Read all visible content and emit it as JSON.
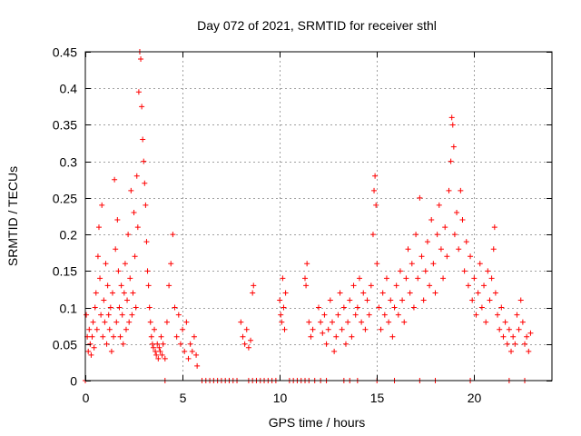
{
  "chart_data": {
    "type": "scatter",
    "title": "Day 072 of 2021, SRMTID for receiver sthl",
    "xlabel": "GPS time / hours",
    "ylabel": "SRMTID / TECUs",
    "xlim": [
      0,
      24
    ],
    "ylim": [
      0,
      0.45
    ],
    "xticks": [
      0,
      5,
      10,
      15,
      20
    ],
    "yticks": [
      0,
      0.05,
      0.1,
      0.15,
      0.2,
      0.25,
      0.3,
      0.35,
      0.4,
      0.45
    ],
    "xtick_labels": [
      "0",
      "5",
      "10",
      "15",
      "20"
    ],
    "ytick_labels": [
      "0",
      "0.05",
      "0.1",
      "0.15",
      "0.2",
      "0.25",
      "0.3",
      "0.35",
      "0.4",
      "0.45"
    ],
    "grid": true,
    "marker": "+",
    "color": "#ff0000",
    "series": [
      {
        "name": "SRMTID",
        "points": [
          [
            0.05,
            0.09
          ],
          [
            0.1,
            0.06
          ],
          [
            0.15,
            0.04
          ],
          [
            0.2,
            0.07
          ],
          [
            0.25,
            0.05
          ],
          [
            0.3,
            0.035
          ],
          [
            0.35,
            0.06
          ],
          [
            0.4,
            0.08
          ],
          [
            0.45,
            0.045
          ],
          [
            0.5,
            0.1
          ],
          [
            0.55,
            0.12
          ],
          [
            0.6,
            0.07
          ],
          [
            0.65,
            0.17
          ],
          [
            0.7,
            0.21
          ],
          [
            0.75,
            0.14
          ],
          [
            0.8,
            0.09
          ],
          [
            0.85,
            0.24
          ],
          [
            0.9,
            0.06
          ],
          [
            0.95,
            0.11
          ],
          [
            1.0,
            0.08
          ],
          [
            1.05,
            0.16
          ],
          [
            1.1,
            0.05
          ],
          [
            1.15,
            0.13
          ],
          [
            1.2,
            0.09
          ],
          [
            1.25,
            0.07
          ],
          [
            1.3,
            0.1
          ],
          [
            1.35,
            0.04
          ],
          [
            1.4,
            0.12
          ],
          [
            1.45,
            0.06
          ],
          [
            1.5,
            0.275
          ],
          [
            1.55,
            0.18
          ],
          [
            1.6,
            0.08
          ],
          [
            1.65,
            0.22
          ],
          [
            1.7,
            0.15
          ],
          [
            1.75,
            0.1
          ],
          [
            1.8,
            0.06
          ],
          [
            1.85,
            0.13
          ],
          [
            1.9,
            0.09
          ],
          [
            1.95,
            0.05
          ],
          [
            2.0,
            0.12
          ],
          [
            2.05,
            0.16
          ],
          [
            2.1,
            0.07
          ],
          [
            2.15,
            0.11
          ],
          [
            2.2,
            0.2
          ],
          [
            2.25,
            0.08
          ],
          [
            2.3,
            0.14
          ],
          [
            2.35,
            0.26
          ],
          [
            2.4,
            0.09
          ],
          [
            2.45,
            0.12
          ],
          [
            2.5,
            0.23
          ],
          [
            2.55,
            0.17
          ],
          [
            2.6,
            0.1
          ],
          [
            2.65,
            0.28
          ],
          [
            2.7,
            0.21
          ],
          [
            2.75,
            0.395
          ],
          [
            2.8,
            0.45
          ],
          [
            2.85,
            0.44
          ],
          [
            2.9,
            0.375
          ],
          [
            2.95,
            0.33
          ],
          [
            3.0,
            0.3
          ],
          [
            3.05,
            0.27
          ],
          [
            3.1,
            0.24
          ],
          [
            3.15,
            0.19
          ],
          [
            3.2,
            0.15
          ],
          [
            3.25,
            0.13
          ],
          [
            3.3,
            0.1
          ],
          [
            3.35,
            0.08
          ],
          [
            3.4,
            0.06
          ],
          [
            3.45,
            0.05
          ],
          [
            3.5,
            0.045
          ],
          [
            3.55,
            0.07
          ],
          [
            3.6,
            0.04
          ],
          [
            3.65,
            0.035
          ],
          [
            3.7,
            0.05
          ],
          [
            3.75,
            0.03
          ],
          [
            3.8,
            0.045
          ],
          [
            3.85,
            0.04
          ],
          [
            3.9,
            0.06
          ],
          [
            3.95,
            0.035
          ],
          [
            4.0,
            0.05
          ],
          [
            4.1,
            0.03
          ],
          [
            4.2,
            0.08
          ],
          [
            4.3,
            0.13
          ],
          [
            4.4,
            0.16
          ],
          [
            4.5,
            0.2
          ],
          [
            4.6,
            0.1
          ],
          [
            4.7,
            0.06
          ],
          [
            4.8,
            0.09
          ],
          [
            4.9,
            0.05
          ],
          [
            5.0,
            0.07
          ],
          [
            5.1,
            0.04
          ],
          [
            5.2,
            0.08
          ],
          [
            5.3,
            0.03
          ],
          [
            5.4,
            0.05
          ],
          [
            5.5,
            0.04
          ],
          [
            5.6,
            0.06
          ],
          [
            5.7,
            0.035
          ],
          [
            5.75,
            0.02
          ],
          [
            8.0,
            0.08
          ],
          [
            8.1,
            0.06
          ],
          [
            8.2,
            0.05
          ],
          [
            8.3,
            0.07
          ],
          [
            8.4,
            0.045
          ],
          [
            8.5,
            0.055
          ],
          [
            8.6,
            0.12
          ],
          [
            8.65,
            0.13
          ],
          [
            10.0,
            0.11
          ],
          [
            10.05,
            0.09
          ],
          [
            10.1,
            0.08
          ],
          [
            10.15,
            0.14
          ],
          [
            10.2,
            0.1
          ],
          [
            10.25,
            0.07
          ],
          [
            10.3,
            0.12
          ],
          [
            11.3,
            0.14
          ],
          [
            11.35,
            0.13
          ],
          [
            11.4,
            0.16
          ],
          [
            11.5,
            0.08
          ],
          [
            11.6,
            0.06
          ],
          [
            11.7,
            0.07
          ],
          [
            12.0,
            0.1
          ],
          [
            12.1,
            0.08
          ],
          [
            12.2,
            0.065
          ],
          [
            12.3,
            0.09
          ],
          [
            12.4,
            0.05
          ],
          [
            12.5,
            0.07
          ],
          [
            12.6,
            0.11
          ],
          [
            12.7,
            0.08
          ],
          [
            12.8,
            0.04
          ],
          [
            12.9,
            0.06
          ],
          [
            13.0,
            0.09
          ],
          [
            13.1,
            0.12
          ],
          [
            13.2,
            0.07
          ],
          [
            13.3,
            0.1
          ],
          [
            13.4,
            0.05
          ],
          [
            13.5,
            0.08
          ],
          [
            13.6,
            0.11
          ],
          [
            13.7,
            0.06
          ],
          [
            13.8,
            0.13
          ],
          [
            13.9,
            0.09
          ],
          [
            14.0,
            0.1
          ],
          [
            14.1,
            0.14
          ],
          [
            14.2,
            0.08
          ],
          [
            14.3,
            0.12
          ],
          [
            14.4,
            0.07
          ],
          [
            14.5,
            0.11
          ],
          [
            14.6,
            0.09
          ],
          [
            14.7,
            0.13
          ],
          [
            14.8,
            0.2
          ],
          [
            14.85,
            0.26
          ],
          [
            14.9,
            0.28
          ],
          [
            14.95,
            0.24
          ],
          [
            15.0,
            0.16
          ],
          [
            15.1,
            0.1
          ],
          [
            15.2,
            0.07
          ],
          [
            15.3,
            0.12
          ],
          [
            15.4,
            0.09
          ],
          [
            15.5,
            0.14
          ],
          [
            15.6,
            0.08
          ],
          [
            15.7,
            0.11
          ],
          [
            15.8,
            0.06
          ],
          [
            15.9,
            0.1
          ],
          [
            16.0,
            0.13
          ],
          [
            16.1,
            0.09
          ],
          [
            16.2,
            0.15
          ],
          [
            16.3,
            0.11
          ],
          [
            16.4,
            0.08
          ],
          [
            16.5,
            0.14
          ],
          [
            16.6,
            0.18
          ],
          [
            16.7,
            0.12
          ],
          [
            16.8,
            0.16
          ],
          [
            16.9,
            0.1
          ],
          [
            17.0,
            0.2
          ],
          [
            17.1,
            0.14
          ],
          [
            17.2,
            0.25
          ],
          [
            17.3,
            0.17
          ],
          [
            17.4,
            0.11
          ],
          [
            17.5,
            0.15
          ],
          [
            17.6,
            0.19
          ],
          [
            17.7,
            0.13
          ],
          [
            17.8,
            0.22
          ],
          [
            17.9,
            0.16
          ],
          [
            18.0,
            0.12
          ],
          [
            18.1,
            0.2
          ],
          [
            18.2,
            0.24
          ],
          [
            18.3,
            0.18
          ],
          [
            18.4,
            0.14
          ],
          [
            18.5,
            0.21
          ],
          [
            18.6,
            0.17
          ],
          [
            18.7,
            0.26
          ],
          [
            18.8,
            0.3
          ],
          [
            18.85,
            0.36
          ],
          [
            18.9,
            0.35
          ],
          [
            18.95,
            0.32
          ],
          [
            19.0,
            0.2
          ],
          [
            19.1,
            0.23
          ],
          [
            19.2,
            0.18
          ],
          [
            19.3,
            0.26
          ],
          [
            19.4,
            0.22
          ],
          [
            19.5,
            0.15
          ],
          [
            19.6,
            0.19
          ],
          [
            19.7,
            0.13
          ],
          [
            19.8,
            0.17
          ],
          [
            19.9,
            0.11
          ],
          [
            20.0,
            0.14
          ],
          [
            20.1,
            0.09
          ],
          [
            20.2,
            0.12
          ],
          [
            20.3,
            0.16
          ],
          [
            20.4,
            0.1
          ],
          [
            20.5,
            0.13
          ],
          [
            20.6,
            0.08
          ],
          [
            20.7,
            0.15
          ],
          [
            20.8,
            0.11
          ],
          [
            20.9,
            0.14
          ],
          [
            21.0,
            0.18
          ],
          [
            21.05,
            0.21
          ],
          [
            21.1,
            0.12
          ],
          [
            21.2,
            0.09
          ],
          [
            21.3,
            0.07
          ],
          [
            21.4,
            0.1
          ],
          [
            21.5,
            0.06
          ],
          [
            21.6,
            0.08
          ],
          [
            21.7,
            0.05
          ],
          [
            21.8,
            0.07
          ],
          [
            21.9,
            0.04
          ],
          [
            22.0,
            0.06
          ],
          [
            22.1,
            0.05
          ],
          [
            22.2,
            0.09
          ],
          [
            22.3,
            0.07
          ],
          [
            22.4,
            0.11
          ],
          [
            22.5,
            0.08
          ],
          [
            22.6,
            0.05
          ],
          [
            22.7,
            0.06
          ],
          [
            22.8,
            0.04
          ],
          [
            22.9,
            0.065
          ],
          [
            0.0,
            0.0
          ],
          [
            4.1,
            0.0
          ],
          [
            6.0,
            0.0
          ],
          [
            6.2,
            0.0
          ],
          [
            6.4,
            0.0
          ],
          [
            6.6,
            0.0
          ],
          [
            6.8,
            0.0
          ],
          [
            7.0,
            0.0
          ],
          [
            7.2,
            0.0
          ],
          [
            7.4,
            0.0
          ],
          [
            7.6,
            0.0
          ],
          [
            7.8,
            0.0
          ],
          [
            8.4,
            0.0
          ],
          [
            8.6,
            0.0
          ],
          [
            8.8,
            0.0
          ],
          [
            9.0,
            0.0
          ],
          [
            9.2,
            0.0
          ],
          [
            9.4,
            0.0
          ],
          [
            9.6,
            0.0
          ],
          [
            9.8,
            0.0
          ],
          [
            10.5,
            0.0
          ],
          [
            10.7,
            0.0
          ],
          [
            10.9,
            0.0
          ],
          [
            11.1,
            0.0
          ],
          [
            11.3,
            0.0
          ],
          [
            11.5,
            0.0
          ],
          [
            11.8,
            0.0
          ],
          [
            12.1,
            0.0
          ],
          [
            12.4,
            0.0
          ],
          [
            13.3,
            0.0
          ],
          [
            13.6,
            0.0
          ],
          [
            14.0,
            0.0
          ],
          [
            15.0,
            0.0
          ],
          [
            15.9,
            0.0
          ],
          [
            17.2,
            0.0
          ],
          [
            18.0,
            0.0
          ],
          [
            19.8,
            0.0
          ],
          [
            21.8,
            0.0
          ],
          [
            22.6,
            0.0
          ]
        ]
      }
    ]
  }
}
